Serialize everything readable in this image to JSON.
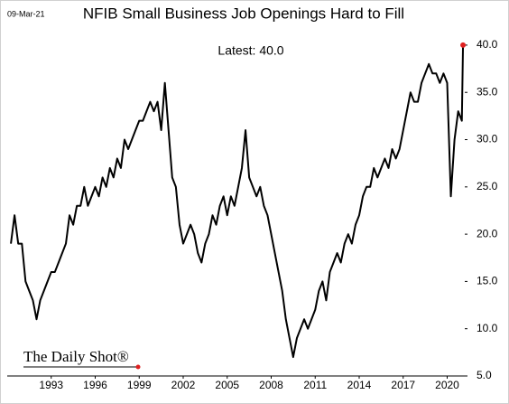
{
  "chart_data": {
    "type": "line",
    "title": "NFIB Small Business Job Openings Hard to Fill",
    "date_label": "09-Mar-21",
    "annotation": "Latest:  40.0",
    "source": "The Daily Shot®",
    "color": "#000000",
    "latest_color": "#e02020",
    "xlim": [
      1990,
      2021.2
    ],
    "xticks": [
      1993,
      1996,
      1999,
      2002,
      2005,
      2008,
      2011,
      2014,
      2017,
      2020
    ],
    "ylim": [
      5,
      42
    ],
    "yticks": [
      {
        "value": 5,
        "label": "5.0"
      },
      {
        "value": 10,
        "label": "10.0"
      },
      {
        "value": 15,
        "label": "15.0"
      },
      {
        "value": 20,
        "label": "20.0"
      },
      {
        "value": 25,
        "label": "25.0"
      },
      {
        "value": 30,
        "label": "30.0"
      },
      {
        "value": 35,
        "label": "35.0"
      },
      {
        "value": 40,
        "label": "40.0"
      }
    ],
    "grid": false,
    "x": [
      1990.25,
      1990.5,
      1990.75,
      1991,
      1991.25,
      1991.5,
      1991.75,
      1992,
      1992.25,
      1992.5,
      1992.75,
      1993,
      1993.25,
      1993.5,
      1993.75,
      1994,
      1994.25,
      1994.5,
      1994.75,
      1995,
      1995.25,
      1995.5,
      1995.75,
      1996,
      1996.25,
      1996.5,
      1996.75,
      1997,
      1997.25,
      1997.5,
      1997.75,
      1998,
      1998.25,
      1998.5,
      1998.75,
      1999,
      1999.25,
      1999.5,
      1999.75,
      2000,
      2000.25,
      2000.5,
      2000.75,
      2001,
      2001.25,
      2001.5,
      2001.75,
      2002,
      2002.25,
      2002.5,
      2002.75,
      2003,
      2003.25,
      2003.5,
      2003.75,
      2004,
      2004.25,
      2004.5,
      2004.75,
      2005,
      2005.25,
      2005.5,
      2005.75,
      2006,
      2006.25,
      2006.5,
      2006.75,
      2007,
      2007.25,
      2007.5,
      2007.75,
      2008,
      2008.25,
      2008.5,
      2008.75,
      2009,
      2009.25,
      2009.5,
      2009.75,
      2010,
      2010.25,
      2010.5,
      2010.75,
      2011,
      2011.25,
      2011.5,
      2011.75,
      2012,
      2012.25,
      2012.5,
      2012.75,
      2013,
      2013.25,
      2013.5,
      2013.75,
      2014,
      2014.25,
      2014.5,
      2014.75,
      2015,
      2015.25,
      2015.5,
      2015.75,
      2016,
      2016.25,
      2016.5,
      2016.75,
      2017,
      2017.25,
      2017.5,
      2017.75,
      2018,
      2018.25,
      2018.5,
      2018.75,
      2019,
      2019.25,
      2019.5,
      2019.75,
      2020,
      2020.25,
      2020.5,
      2020.75,
      2021,
      2021.08
    ],
    "values": [
      19,
      22,
      19,
      19,
      15,
      14,
      13,
      11,
      13,
      14,
      15,
      16,
      16,
      17,
      18,
      19,
      22,
      21,
      23,
      23,
      25,
      23,
      24,
      25,
      24,
      26,
      25,
      27,
      26,
      28,
      27,
      30,
      29,
      30,
      31,
      32,
      32,
      33,
      34,
      33,
      34,
      31,
      36,
      31,
      26,
      25,
      21,
      19,
      20,
      21,
      20,
      18,
      17,
      19,
      20,
      22,
      21,
      23,
      24,
      22,
      24,
      23,
      25,
      27,
      31,
      26,
      25,
      24,
      25,
      23,
      22,
      20,
      18,
      16,
      14,
      11,
      9,
      7,
      9,
      10,
      11,
      10,
      11,
      12,
      14,
      15,
      13,
      16,
      17,
      18,
      17,
      19,
      20,
      19,
      21,
      22,
      24,
      25,
      25,
      27,
      26,
      27,
      28,
      27,
      29,
      28,
      29,
      31,
      33,
      35,
      34,
      34,
      36,
      37,
      38,
      37,
      37,
      36,
      37,
      36,
      24,
      30,
      33,
      32,
      40
    ]
  }
}
